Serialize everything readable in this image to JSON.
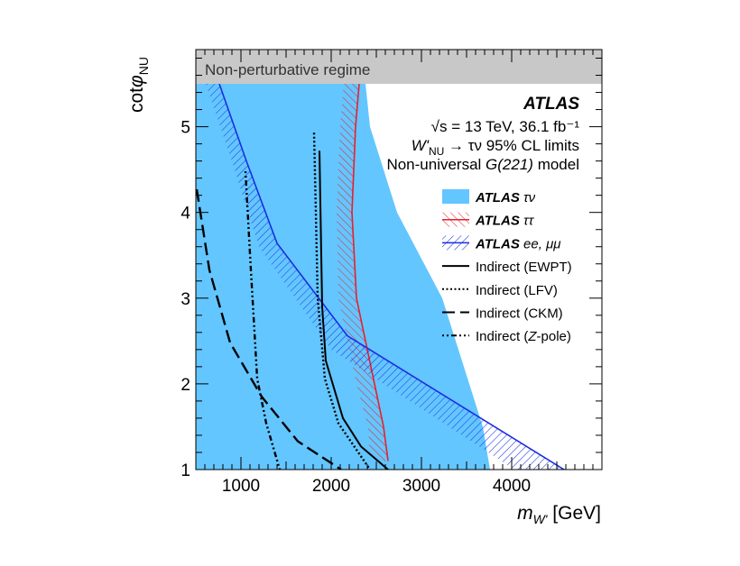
{
  "chart_data": {
    "type": "line",
    "xlabel": "m_W' [GeV]",
    "ylabel": "cotφ_NU",
    "xlim": [
      500,
      5000
    ],
    "ylim": [
      1,
      5.9
    ],
    "xticks": [
      1000,
      2000,
      3000,
      4000
    ],
    "yticks": [
      1,
      2,
      3,
      4,
      5
    ],
    "band": {
      "label": "Non-perturbative regime",
      "ymin": 5.5,
      "ymax": 5.9,
      "color": "#c8c8c8"
    },
    "annotations": [
      "ATLAS",
      "√s = 13 TeV, 36.1 fb⁻¹",
      "W'NU → τν 95% CL limits",
      "Non-universal G(221) model"
    ],
    "legend_placement": "right",
    "series": [
      {
        "name": "ATLAS τν",
        "style": "fill",
        "color": "#63c6ff",
        "boundary": [
          [
            2380,
            5.5
          ],
          [
            2430,
            5.0
          ],
          [
            2730,
            4.0
          ],
          [
            3230,
            3.0
          ],
          [
            3530,
            2.0
          ],
          [
            3680,
            1.5
          ],
          [
            3760,
            1.0
          ]
        ]
      },
      {
        "name": "ATLAS ττ",
        "style": "hatch",
        "color": "#e8202a",
        "line": [
          [
            2310,
            5.5
          ],
          [
            2270,
            5.0
          ],
          [
            2230,
            4.0
          ],
          [
            2280,
            3.0
          ],
          [
            2480,
            2.0
          ],
          [
            2580,
            1.5
          ],
          [
            2630,
            1.1
          ]
        ],
        "hatch_edge": [
          [
            2140,
            5.5
          ],
          [
            2100,
            5.0
          ],
          [
            2060,
            4.0
          ],
          [
            2080,
            3.0
          ],
          [
            2180,
            2.5
          ],
          [
            2280,
            2.0
          ],
          [
            2410,
            1.5
          ],
          [
            2430,
            1.1
          ]
        ]
      },
      {
        "name": "ATLAS ee, μμ",
        "style": "hatch",
        "color": "#1a2ee0",
        "line": [
          [
            760,
            5.5
          ],
          [
            1060,
            4.6
          ],
          [
            1400,
            3.64
          ],
          [
            2180,
            2.56
          ],
          [
            4580,
            1.0
          ]
        ],
        "hatch_edge": [
          [
            610,
            5.5
          ],
          [
            900,
            4.6
          ],
          [
            1200,
            3.6
          ],
          [
            2000,
            2.4
          ],
          [
            4030,
            1.0
          ]
        ]
      },
      {
        "name": "Indirect (EWPT)",
        "style": "solid",
        "color": "#000000",
        "points": [
          [
            1870,
            4.72
          ],
          [
            1890,
            3.5
          ],
          [
            1900,
            2.9
          ],
          [
            1940,
            2.27
          ],
          [
            2130,
            1.6
          ],
          [
            2330,
            1.27
          ],
          [
            2630,
            1.0
          ]
        ]
      },
      {
        "name": "Indirect (LFV)",
        "style": "dotted",
        "color": "#000000",
        "points": [
          [
            1810,
            4.93
          ],
          [
            1830,
            4.0
          ],
          [
            1850,
            3.0
          ],
          [
            1930,
            2.06
          ],
          [
            2080,
            1.54
          ],
          [
            2430,
            1.0
          ]
        ]
      },
      {
        "name": "Indirect (CKM)",
        "style": "dashed",
        "color": "#000000",
        "points": [
          [
            510,
            4.27
          ],
          [
            650,
            3.33
          ],
          [
            880,
            2.48
          ],
          [
            1230,
            1.85
          ],
          [
            1630,
            1.33
          ],
          [
            2110,
            1.0
          ]
        ]
      },
      {
        "name": "Indirect (Z-pole)",
        "style": "dashdot",
        "color": "#000000",
        "points": [
          [
            1050,
            4.48
          ],
          [
            1110,
            3.33
          ],
          [
            1180,
            2.06
          ],
          [
            1280,
            1.54
          ],
          [
            1430,
            1.0
          ]
        ]
      }
    ]
  }
}
